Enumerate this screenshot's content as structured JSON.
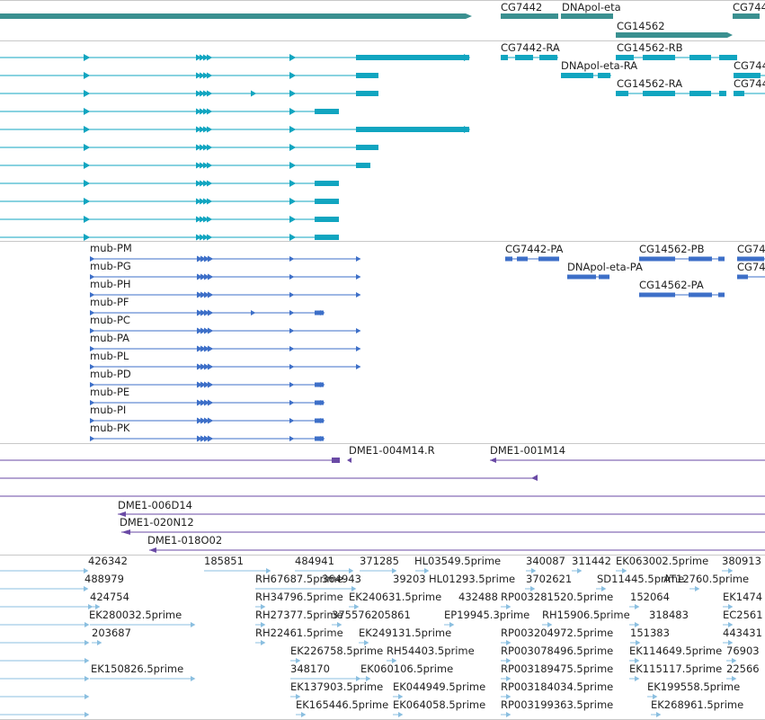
{
  "colors": {
    "gene": "#3a9090",
    "transcript": "#11a5c0",
    "cds": "#3d6fc8",
    "clone": "#6a4aa5",
    "est": "#8bbfe0",
    "divider": "#c8c8c8"
  },
  "gene_track": {
    "labels": [
      "CG7442",
      "DNApol-eta",
      "CG14562",
      "CG744"
    ]
  },
  "transcript_track": {
    "labels": [
      "CG7442-RA",
      "CG14562-RB",
      "DNApol-eta-RA",
      "CG744",
      "CG14562-RA",
      "CG744"
    ]
  },
  "cds_track": {
    "mub_labels": [
      "mub-PM",
      "mub-PG",
      "mub-PH",
      "mub-PF",
      "mub-PC",
      "mub-PA",
      "mub-PL",
      "mub-PD",
      "mub-PE",
      "mub-PI",
      "mub-PK"
    ],
    "right_labels": [
      "CG7442-PA",
      "CG14562-PB",
      "CG74",
      "DNApol-eta-PA",
      "CG74",
      "CG14562-PA"
    ]
  },
  "clone_track": {
    "labels": [
      "DME1-004M14.R",
      "DME1-001M14",
      "DME1-006D14",
      "DME1-020N12",
      "DME1-018O02"
    ]
  },
  "est_track": {
    "labels": [
      "426342",
      "185851",
      "484941",
      "371285",
      "HL03549.5prime",
      "340087",
      "311442",
      "EK063002.5prime",
      "380913",
      "488979",
      "RH67687.5prime",
      "364943",
      "39203",
      "HL01293.5prime",
      "3702621",
      "SD11445.5prime",
      "AT12760.5prime",
      "424754",
      "RH34796.5prime",
      "EK240631.5prime",
      "432488",
      "RP003281520.5prime",
      "152064",
      "EK1474",
      "EK280032.5prime",
      "RH27377.5prime",
      "375576205861",
      "EP19945.3prime",
      "RH15906.5prime",
      "318483",
      "EC2561",
      "203687",
      "RH22461.5prime",
      "EK249131.5prime",
      "RP003204972.5prime",
      "151383",
      "443431",
      "EK226758.5prime",
      "RH54403.5prime",
      "RP003078496.5prime",
      "EK114649.5prime",
      "76903",
      "EK150826.5prime",
      "348170",
      "EK060106.5prime",
      "RP003189475.5prime",
      "EK115117.5prime",
      "22566",
      "EK137903.5prime",
      "EK044949.5prime",
      "RP003184034.5prime",
      "EK199558.5prime",
      "EK165446.5prime",
      "EK064058.5prime",
      "RP003199363.5prime",
      "EK268961.5prime"
    ]
  }
}
